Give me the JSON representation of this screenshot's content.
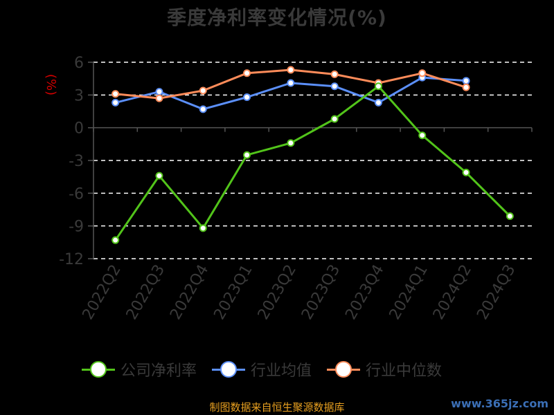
{
  "chart_data": {
    "type": "line",
    "title": "季度净利率变化情况(%)",
    "ylabel": "(%)",
    "xlabel": "",
    "categories": [
      "2022Q2",
      "2022Q3",
      "2022Q4",
      "2023Q1",
      "2023Q2",
      "2023Q3",
      "2023Q4",
      "2024Q1",
      "2024Q2",
      "2024Q3"
    ],
    "ylim": [
      -12,
      6
    ],
    "yticks": [
      "6",
      "3",
      "0",
      "-3",
      "-6",
      "-9",
      "-12"
    ],
    "grid": "horizontal dashed",
    "legend_position": "bottom",
    "series": [
      {
        "name": "公司净利率",
        "color": "#52c41a",
        "values": [
          -10.3,
          -4.4,
          -9.2,
          -2.5,
          -1.4,
          0.8,
          3.8,
          -0.7,
          -4.1,
          -8.1
        ]
      },
      {
        "name": "行业均值",
        "color": "#5b8ff9",
        "values": [
          2.3,
          3.3,
          1.7,
          2.8,
          4.1,
          3.8,
          2.3,
          4.6,
          4.3,
          null
        ]
      },
      {
        "name": "行业中位数",
        "color": "#ff8c5a",
        "values": [
          3.1,
          2.7,
          3.4,
          5.0,
          5.3,
          4.9,
          4.1,
          5.0,
          3.7,
          null
        ]
      }
    ]
  },
  "source_text": "制图数据来自恒生聚源数据库",
  "watermark_text": "www.365jz.com"
}
